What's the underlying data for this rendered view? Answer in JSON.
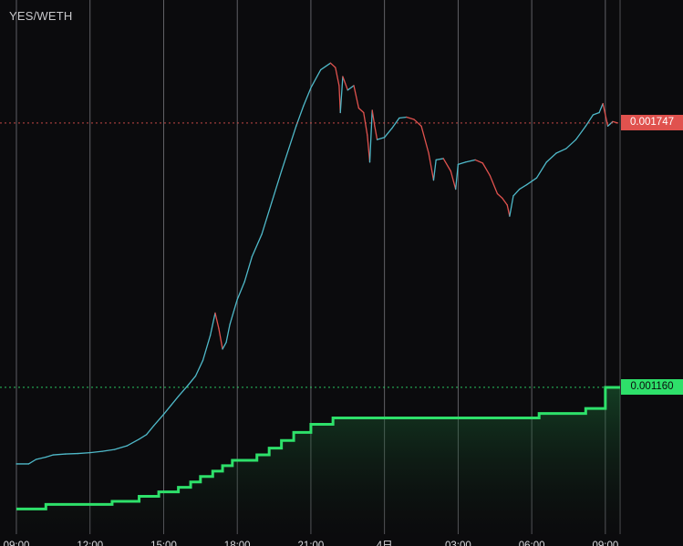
{
  "pair": "YES/WETH",
  "colors": {
    "background": "#0b0b0d",
    "grid": "#8a8a90",
    "price_up": "#4fb9c9",
    "price_down": "#e0524e",
    "liquidity_line": "#2ee06a",
    "price_tag": "#e0524e",
    "liquidity_tag": "#2ee06a"
  },
  "price_tags": {
    "price": "0.001747",
    "liquidity": "0.001160"
  },
  "chart_data": {
    "type": "line",
    "x_ticks": [
      "09:00",
      "12:00",
      "15:00",
      "18:00",
      "21:00",
      "4日",
      "03:00",
      "06:00",
      "09:00"
    ],
    "x_tick_hours": [
      0,
      3,
      6,
      9,
      12,
      15,
      18,
      21,
      24
    ],
    "xlim_hours": [
      0,
      24.6
    ],
    "ylim": [
      0.00083,
      0.00202
    ],
    "grid": "vertical",
    "series": [
      {
        "role": "price",
        "values": [
          [
            0.0,
            0.00099
          ],
          [
            0.5,
            0.00099
          ],
          [
            0.8,
            0.001
          ],
          [
            1.2,
            0.001005
          ],
          [
            1.5,
            0.00101
          ],
          [
            2.0,
            0.001012
          ],
          [
            2.5,
            0.001013
          ],
          [
            3.0,
            0.001015
          ],
          [
            3.5,
            0.001018
          ],
          [
            4.0,
            0.001022
          ],
          [
            4.5,
            0.00103
          ],
          [
            5.0,
            0.001045
          ],
          [
            5.3,
            0.001055
          ],
          [
            5.6,
            0.001075
          ],
          [
            6.0,
            0.0011
          ],
          [
            6.3,
            0.00112
          ],
          [
            6.6,
            0.00114
          ],
          [
            7.0,
            0.001165
          ],
          [
            7.3,
            0.001185
          ],
          [
            7.6,
            0.00122
          ],
          [
            7.9,
            0.001275
          ],
          [
            8.1,
            0.001325
          ],
          [
            8.25,
            0.00129
          ],
          [
            8.4,
            0.001245
          ],
          [
            8.55,
            0.00126
          ],
          [
            8.7,
            0.0013
          ],
          [
            9.0,
            0.001355
          ],
          [
            9.3,
            0.001395
          ],
          [
            9.6,
            0.00145
          ],
          [
            10.0,
            0.0015
          ],
          [
            10.4,
            0.00157
          ],
          [
            10.8,
            0.00164
          ],
          [
            11.1,
            0.00169
          ],
          [
            11.4,
            0.00174
          ],
          [
            11.7,
            0.001785
          ],
          [
            12.0,
            0.001825
          ],
          [
            12.4,
            0.001865
          ],
          [
            12.8,
            0.00188
          ],
          [
            13.0,
            0.00187
          ],
          [
            13.15,
            0.00183
          ],
          [
            13.2,
            0.00177
          ],
          [
            13.3,
            0.00185
          ],
          [
            13.5,
            0.00182
          ],
          [
            13.75,
            0.00183
          ],
          [
            13.95,
            0.00178
          ],
          [
            14.15,
            0.00177
          ],
          [
            14.3,
            0.00172
          ],
          [
            14.4,
            0.00166
          ],
          [
            14.5,
            0.001775
          ],
          [
            14.6,
            0.00174
          ],
          [
            14.7,
            0.00171
          ],
          [
            15.0,
            0.001715
          ],
          [
            15.3,
            0.001735
          ],
          [
            15.6,
            0.001758
          ],
          [
            15.9,
            0.00176
          ],
          [
            16.2,
            0.001755
          ],
          [
            16.5,
            0.00174
          ],
          [
            16.8,
            0.00168
          ],
          [
            17.0,
            0.00162
          ],
          [
            17.1,
            0.001665
          ],
          [
            17.4,
            0.001668
          ],
          [
            17.7,
            0.00164
          ],
          [
            17.9,
            0.0016
          ],
          [
            18.0,
            0.001655
          ],
          [
            18.3,
            0.00166
          ],
          [
            18.7,
            0.001665
          ],
          [
            19.0,
            0.001658
          ],
          [
            19.3,
            0.00163
          ],
          [
            19.6,
            0.00159
          ],
          [
            19.8,
            0.00158
          ],
          [
            20.0,
            0.001565
          ],
          [
            20.1,
            0.00154
          ],
          [
            20.25,
            0.001585
          ],
          [
            20.5,
            0.0016
          ],
          [
            20.8,
            0.00161
          ],
          [
            21.2,
            0.001625
          ],
          [
            21.6,
            0.00166
          ],
          [
            22.0,
            0.00168
          ],
          [
            22.4,
            0.00169
          ],
          [
            22.8,
            0.00171
          ],
          [
            23.2,
            0.00174
          ],
          [
            23.5,
            0.001765
          ],
          [
            23.75,
            0.00177
          ],
          [
            23.9,
            0.00179
          ],
          [
            24.1,
            0.00174
          ],
          [
            24.3,
            0.00175
          ],
          [
            24.5,
            0.001747
          ]
        ]
      },
      {
        "role": "liquidity",
        "values": [
          [
            0.0,
            0.00089
          ],
          [
            1.2,
            0.0009
          ],
          [
            3.9,
            0.000907
          ],
          [
            5.0,
            0.000918
          ],
          [
            5.8,
            0.000928
          ],
          [
            6.6,
            0.000938
          ],
          [
            7.1,
            0.00095
          ],
          [
            7.5,
            0.000962
          ],
          [
            8.0,
            0.000974
          ],
          [
            8.4,
            0.000986
          ],
          [
            8.8,
            0.000998
          ],
          [
            9.8,
            0.00101
          ],
          [
            10.3,
            0.001025
          ],
          [
            10.8,
            0.001042
          ],
          [
            11.3,
            0.00106
          ],
          [
            12.0,
            0.001078
          ],
          [
            12.9,
            0.001092
          ],
          [
            21.3,
            0.001102
          ],
          [
            23.2,
            0.001113
          ],
          [
            24.0,
            0.00116
          ],
          [
            24.6,
            0.00116
          ]
        ]
      }
    ]
  }
}
